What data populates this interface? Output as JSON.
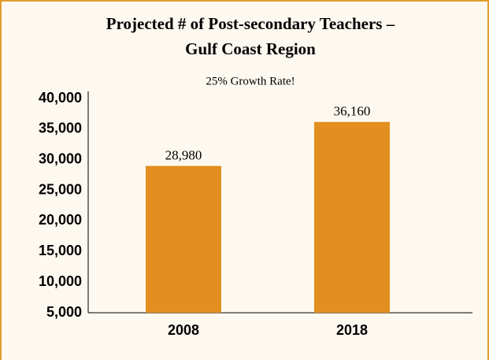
{
  "chart_data": {
    "type": "bar",
    "title": [
      "Projected # of Post-secondary Teachers –",
      "Gulf Coast Region"
    ],
    "subtitle": "25% Growth Rate!",
    "categories": [
      "2008",
      "2018"
    ],
    "values": [
      28980,
      36160
    ],
    "value_labels": [
      "28,980",
      "36,160"
    ],
    "color": "#e28f1f",
    "ylim": [
      5000,
      40000
    ],
    "yticks": [
      {
        "value": 5000,
        "label": "5,000"
      },
      {
        "value": 10000,
        "label": "10,000"
      },
      {
        "value": 15000,
        "label": "15,000"
      },
      {
        "value": 20000,
        "label": "20,000"
      },
      {
        "value": 25000,
        "label": "25,000"
      },
      {
        "value": 30000,
        "label": "30,000"
      },
      {
        "value": 35000,
        "label": "35,000"
      },
      {
        "value": 40000,
        "label": "40,000"
      }
    ],
    "grid": false
  }
}
